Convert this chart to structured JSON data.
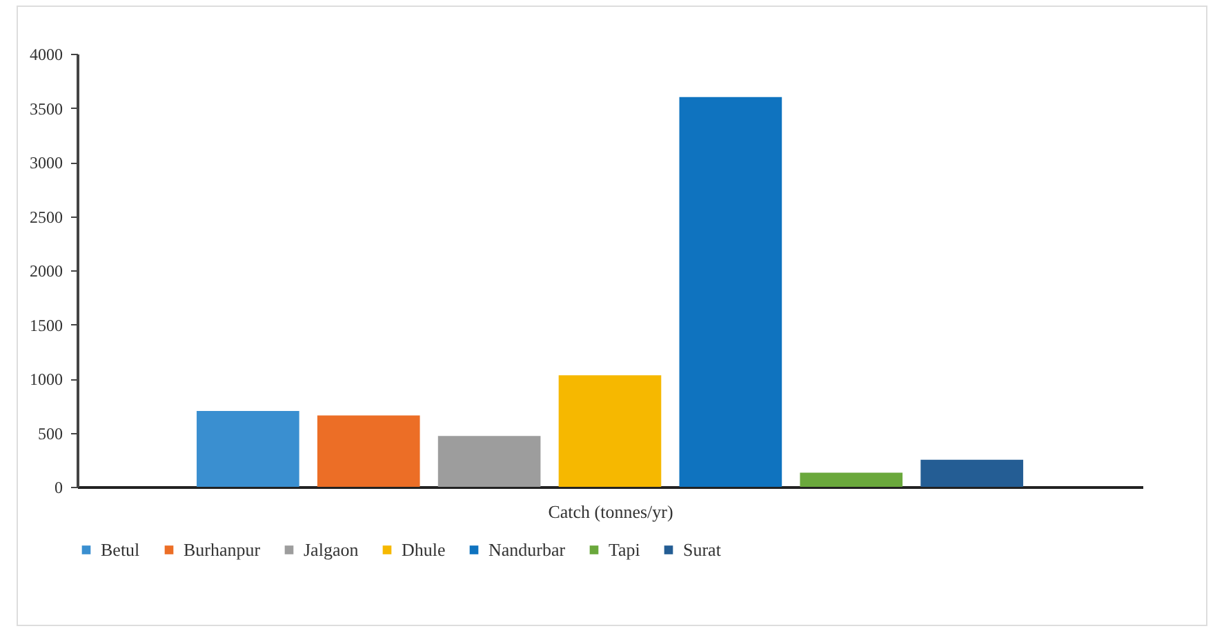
{
  "chart_data": {
    "type": "bar",
    "xlabel": "Catch (tonnes/yr)",
    "categories": [
      null
    ],
    "series": [
      {
        "name": "Betul",
        "color": "#3a8fd0",
        "values": [
          700
        ]
      },
      {
        "name": "Burhanpur",
        "color": "#ec6e26",
        "values": [
          660
        ]
      },
      {
        "name": "Jalgaon",
        "color": "#9d9d9d",
        "values": [
          470
        ]
      },
      {
        "name": "Dhule",
        "color": "#f6b800",
        "values": [
          1030
        ]
      },
      {
        "name": "Nandurbar",
        "color": "#0f73bf",
        "values": [
          3600
        ]
      },
      {
        "name": "Tapi",
        "color": "#6aa83c",
        "values": [
          130
        ]
      },
      {
        "name": "Surat",
        "color": "#245d94",
        "values": [
          250
        ]
      }
    ],
    "ylim": [
      0,
      4000
    ],
    "yticks": [
      0,
      500,
      1000,
      1500,
      2000,
      2500,
      3000,
      3500,
      4000
    ],
    "legend": "bottom",
    "grid": false
  }
}
